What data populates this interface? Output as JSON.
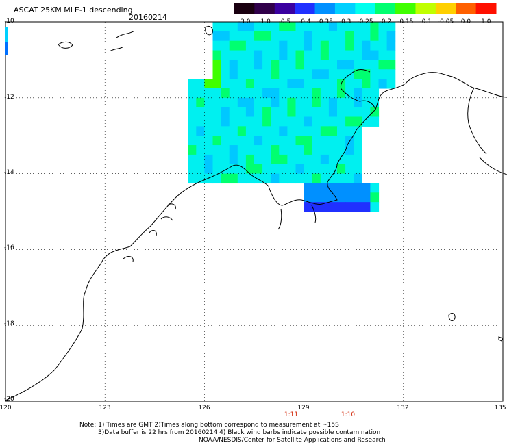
{
  "header": {
    "title": "ASCAT 25KM MLE-1 descending",
    "date": "20160214"
  },
  "colorbar": {
    "labels": [
      "-3.0",
      "-1.0",
      "-0.5",
      "-0.4",
      "-0.35",
      "-0.3",
      "-0.25",
      "-0.2",
      "-0.15",
      "-0.1",
      "-0.05",
      "0.0",
      "1.0"
    ],
    "colors": [
      "#1a0010",
      "#30004a",
      "#3a00a0",
      "#2030ff",
      "#0090ff",
      "#00d0ff",
      "#00ffee",
      "#00ff70",
      "#40ff00",
      "#c0ff00",
      "#ffd000",
      "#ff6000",
      "#ff1000"
    ]
  },
  "axes": {
    "y_ticks": [
      "-10",
      "-12",
      "-14",
      "-16",
      "-18",
      "-20"
    ],
    "x_ticks": [
      "120",
      "123",
      "126",
      "129",
      "132",
      "135"
    ]
  },
  "times": [
    "1:11",
    "1:10"
  ],
  "notes": {
    "line1": "Note: 1) Times are GMT 2)Times along bottom correspond to measurement at ~15S",
    "line2": "3)Data buffer is 22 hrs from 20160214 4) Black wind barbs indicate possible contamination",
    "line3": "NOAA/NESDIS/Center for Satellite Applications and Research"
  },
  "chart_data": {
    "type": "heatmap",
    "title": "ASCAT 25KM MLE-1 descending",
    "subtitle": "20160214",
    "xlim": [
      120,
      135
    ],
    "ylim": [
      -20,
      -10
    ],
    "x_ticks": [
      120,
      123,
      126,
      129,
      132,
      135
    ],
    "y_ticks": [
      -10,
      -12,
      -14,
      -16,
      -18,
      -20
    ],
    "grid": true,
    "colorbar_levels": [
      -3.0,
      -1.0,
      -0.5,
      -0.4,
      -0.35,
      -0.3,
      -0.25,
      -0.2,
      -0.15,
      -0.1,
      -0.05,
      0.0,
      1.0
    ],
    "swath_lon_range": [
      125.5,
      131.7
    ],
    "swath_lat_range": [
      -15.0,
      -10.0
    ],
    "dominant_value": -0.3,
    "low_value_area": {
      "lon": [
        128.8,
        130.8
      ],
      "lat": [
        -15.0,
        -14.2
      ],
      "value": -0.4
    },
    "high_value_area": {
      "lon": [
        125.8,
        126.3
      ],
      "lat": [
        -11.5,
        -11.0
      ],
      "value": -0.2
    },
    "times": [
      "1:11",
      "1:10"
    ]
  }
}
